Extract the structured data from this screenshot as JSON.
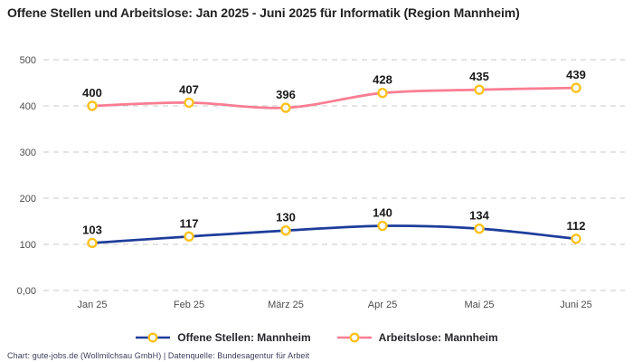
{
  "chart_data": {
    "type": "line",
    "title": "Offene Stellen und Arbeitslose: Jan 2025 - Juni 2025 für Informatik (Region Mannheim)",
    "categories": [
      "Jan 25",
      "Feb 25",
      "März 25",
      "Apr 25",
      "Mai 25",
      "Juni 25"
    ],
    "series": [
      {
        "name": "Offene Stellen: Mannheim",
        "color": "#1e3d9b",
        "values": [
          103,
          117,
          130,
          140,
          134,
          112
        ]
      },
      {
        "name": "Arbeitslose: Mannheim",
        "color": "#fa7d92",
        "values": [
          400,
          407,
          396,
          428,
          435,
          439
        ]
      }
    ],
    "marker_color": "#fcc21d",
    "marker_fill": "#ffffff",
    "yticks": [
      "0,00",
      "100",
      "200",
      "300",
      "400",
      "500"
    ],
    "ylim": [
      0,
      500
    ],
    "xlabel": "",
    "ylabel": "",
    "grid": "horizontal-dashed",
    "grid_color": "#c9c9c9",
    "legend_position": "bottom"
  },
  "footer": {
    "text": "Chart: gute-jobs.de (Wollmilchsau GmbH) | Datenquelle: Bundesagentur für Arbeit"
  }
}
